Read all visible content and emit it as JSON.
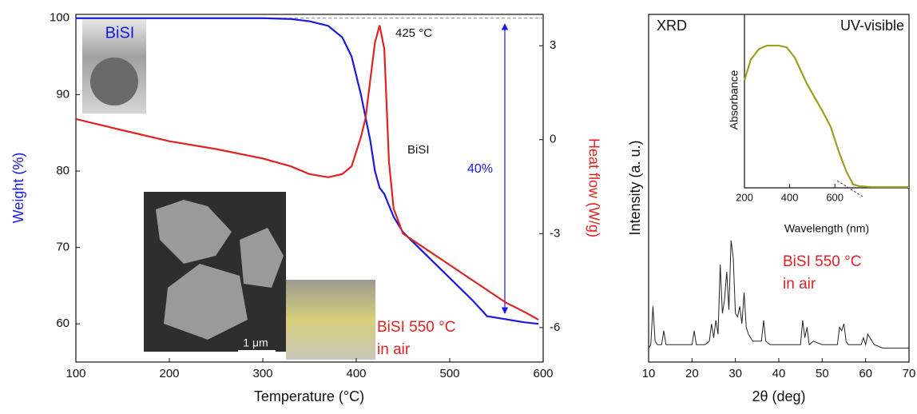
{
  "chart_data": [
    {
      "type": "line",
      "x_label": "Temperature (°C)",
      "y_label": "Weight (%)",
      "y2_label": "Heat flow (W/g)",
      "x": [
        100,
        150,
        200,
        250,
        300,
        330,
        350,
        370,
        385,
        395,
        405,
        410,
        415,
        420,
        425,
        430,
        435,
        440,
        450,
        475,
        500,
        525,
        540,
        560,
        580,
        595
      ],
      "series": [
        {
          "color": "#1a1adc",
          "values": [
            100,
            100,
            100,
            100,
            100,
            99.9,
            99.6,
            99,
            97.5,
            95,
            90,
            87,
            84,
            80,
            77.8,
            77,
            75.5,
            74,
            72,
            69,
            66,
            63,
            61,
            60.6,
            60.2,
            60
          ]
        },
        {
          "color": "#e02222",
          "axis": "y2",
          "values": [
            0.66,
            0.3,
            -0.05,
            -0.3,
            -0.6,
            -0.85,
            -1.1,
            -1.2,
            -1.1,
            -0.85,
            0.08,
            0.7,
            1.9,
            3.1,
            3.65,
            2.9,
            -0.7,
            -2.2,
            -3.0,
            -3.5,
            -4.0,
            -4.5,
            -4.8,
            -5.2,
            -5.5,
            -5.75
          ]
        }
      ],
      "xlim": [
        100,
        600
      ],
      "xticks": [
        100,
        200,
        300,
        400,
        500,
        600
      ],
      "ylim": [
        55,
        100.5
      ],
      "yticks": [
        60,
        70,
        80,
        90,
        100
      ],
      "y2lim": [
        -7.1,
        4.0
      ],
      "y2ticks": [
        -6,
        -3,
        0,
        3
      ],
      "annotations": [
        {
          "text": "425 °C",
          "color": "#111111"
        },
        {
          "text": "BiSI",
          "color": "#1a1adc"
        },
        {
          "text": "BiSI",
          "color": "#111111"
        },
        {
          "text": "40%",
          "color": "#1a1adc"
        },
        {
          "text": "BiSI 550 °C",
          "color": "#e02222"
        },
        {
          "text": "in air",
          "color": "#e02222"
        },
        {
          "text": "1 μm",
          "color": "#ffffff"
        }
      ]
    },
    {
      "type": "line",
      "x_label": "2θ (deg)",
      "y_label": "Intensity (a. u.)",
      "x": [
        10,
        10.5,
        11,
        11.5,
        12,
        13,
        13.5,
        14,
        16,
        18,
        20,
        20.5,
        21,
        23,
        24,
        24.5,
        25,
        25.5,
        26,
        26.5,
        27,
        27.5,
        28,
        28.5,
        29,
        29.5,
        30,
        30.5,
        31,
        31.5,
        32,
        32.5,
        33,
        34,
        35,
        36,
        36.5,
        37,
        38,
        40,
        42,
        44,
        45,
        45.5,
        46,
        46.5,
        47,
        48,
        50,
        52,
        53.5,
        54,
        54.5,
        55,
        55.5,
        56,
        58,
        59,
        59.5,
        60,
        60.5,
        62,
        64,
        66,
        68,
        70
      ],
      "values": [
        4,
        5,
        16,
        6,
        5,
        5,
        9,
        5,
        5,
        5,
        5,
        9,
        5,
        5,
        6,
        11,
        7,
        12,
        8,
        28,
        14,
        18,
        26,
        15,
        35,
        30,
        14,
        13,
        16,
        11,
        20,
        10,
        8,
        6,
        6,
        6,
        12,
        6,
        5,
        5,
        5,
        5,
        5,
        12,
        7,
        10,
        5,
        6,
        5,
        5,
        5,
        10,
        9,
        11,
        6,
        5,
        5,
        5,
        7,
        5,
        8,
        5,
        4,
        4,
        4,
        4
      ],
      "color": "#222222",
      "xlim": [
        10,
        70
      ],
      "xticks": [
        10,
        20,
        30,
        40,
        50,
        60,
        70
      ],
      "ylim": [
        0,
        100
      ],
      "annotations": [
        {
          "text": "XRD",
          "color": "#111111"
        },
        {
          "text": "BiSI 550 °C",
          "color": "#e02222"
        },
        {
          "text": "in air",
          "color": "#e02222"
        }
      ]
    },
    {
      "type": "line",
      "x_label": "Wavelength (nm)",
      "y_label": "Absorbance",
      "x": [
        200,
        228,
        264,
        299,
        352,
        387,
        423,
        476,
        546,
        582,
        617,
        652,
        681,
        705,
        758,
        928
      ],
      "values": [
        62,
        74,
        80,
        82,
        82,
        81,
        75,
        60,
        44,
        35,
        21,
        9,
        2,
        1,
        0.5,
        0.5
      ],
      "color": "#9aa020",
      "xlim": [
        200,
        928
      ],
      "xticks": [
        200,
        400,
        600
      ],
      "ylim": [
        0,
        100
      ],
      "annotations": [
        {
          "text": "UV-visible",
          "color": "#111111"
        }
      ]
    }
  ]
}
